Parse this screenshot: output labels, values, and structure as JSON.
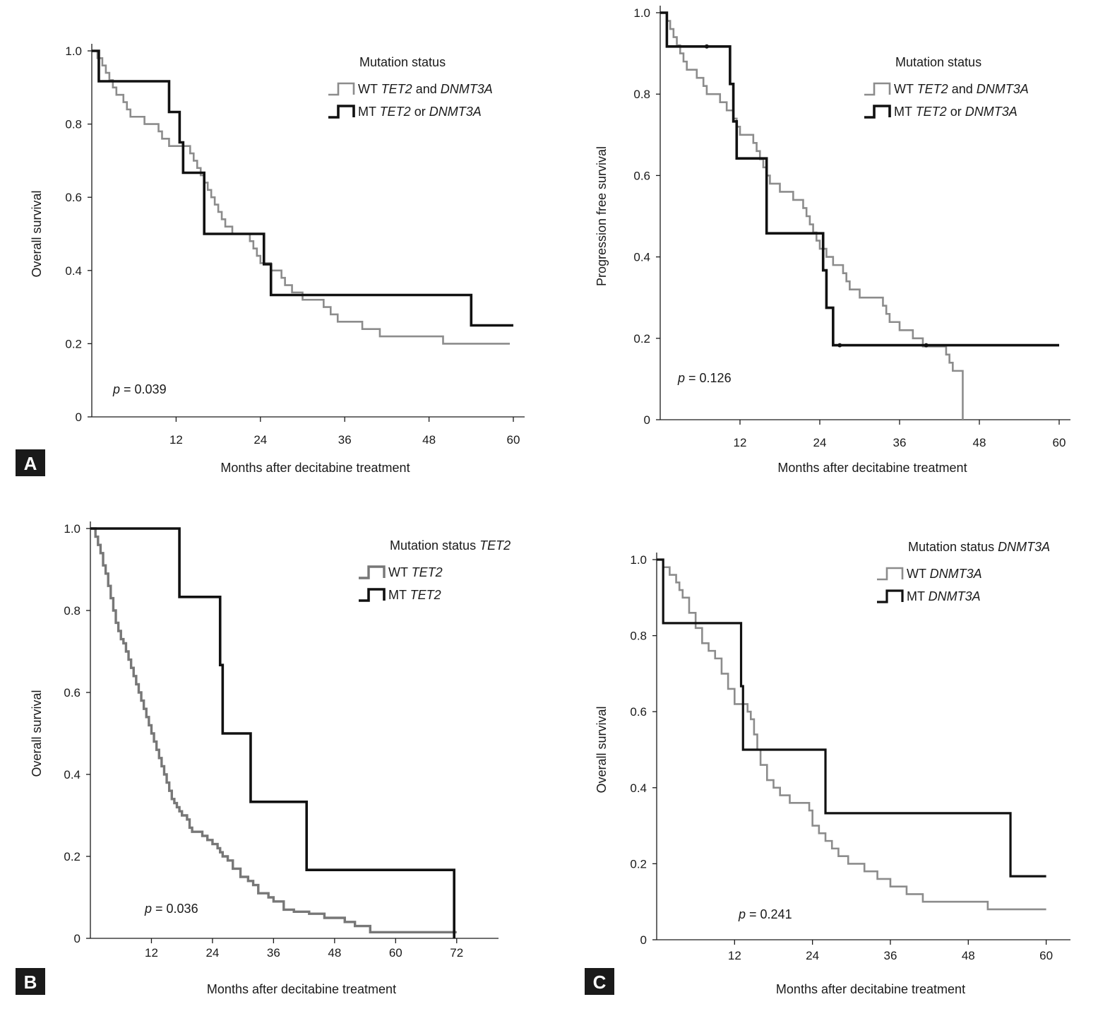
{
  "figure": {
    "panel_labels": [
      "A",
      "B",
      "C"
    ]
  },
  "chart_data": [
    {
      "type": "line",
      "subtype": "kaplan-meier",
      "id": "A-left",
      "xlabel": "Months after decitabine treatment",
      "ylabel": "Overall survival",
      "xlim": [
        0,
        60
      ],
      "ylim": [
        0,
        1
      ],
      "xticks": [
        12,
        24,
        36,
        48,
        60
      ],
      "yticks": [
        0,
        0.2,
        0.4,
        0.6,
        0.8,
        1.0
      ],
      "ytick_labels": [
        "0",
        "0.2",
        "0.4",
        "0.6",
        "0.8",
        "1.0"
      ],
      "legend_title": "Mutation status",
      "legend_title_italic": "",
      "p_label": "p",
      "p_value": " = 0.039",
      "series": [
        {
          "name_plain": "WT ",
          "name_italic": "TET2",
          "name_join": " and ",
          "name_italic2": "DNMT3A",
          "color": "#8c8c8c",
          "width": 2.6,
          "times": [
            0.8,
            1.5,
            2.0,
            2.5,
            3.0,
            3.5,
            4.5,
            5.0,
            5.5,
            7.5,
            9.5,
            10.0,
            11.0,
            14.0,
            14.5,
            15.0,
            15.5,
            16.0,
            16.5,
            17.0,
            17.5,
            18.0,
            18.5,
            19.0,
            20.0,
            22.5,
            23.0,
            23.5,
            24.0,
            25.5,
            27.0,
            27.5,
            28.5,
            30.0,
            33.0,
            34.0,
            35.0,
            38.5,
            41.0,
            50.0,
            59.5
          ],
          "survival": [
            0.98,
            0.96,
            0.94,
            0.92,
            0.9,
            0.88,
            0.86,
            0.84,
            0.82,
            0.8,
            0.78,
            0.76,
            0.74,
            0.72,
            0.7,
            0.68,
            0.66,
            0.64,
            0.62,
            0.6,
            0.58,
            0.56,
            0.54,
            0.52,
            0.5,
            0.48,
            0.46,
            0.44,
            0.42,
            0.4,
            0.38,
            0.36,
            0.34,
            0.32,
            0.3,
            0.28,
            0.26,
            0.24,
            0.22,
            0.2,
            0.2
          ],
          "censor_times": []
        },
        {
          "name_plain": "MT ",
          "name_italic": "TET2",
          "name_join": " or ",
          "name_italic2": "DNMT3A",
          "color": "#111111",
          "width": 3.6,
          "times": [
            1.0,
            11.0,
            12.5,
            13.0,
            16.0,
            24.5,
            25.5,
            54.0,
            60.0
          ],
          "survival": [
            0.917,
            0.833,
            0.75,
            0.667,
            0.5,
            0.417,
            0.333,
            0.25,
            0.25
          ],
          "censor_times": []
        }
      ]
    },
    {
      "type": "line",
      "subtype": "kaplan-meier",
      "id": "A-right",
      "xlabel": "Months after decitabine treatment",
      "ylabel": "Progression free survival",
      "xlim": [
        0,
        60
      ],
      "ylim": [
        0,
        1
      ],
      "xticks": [
        12,
        24,
        36,
        48,
        60
      ],
      "yticks": [
        0,
        0.2,
        0.4,
        0.6,
        0.8,
        1.0
      ],
      "ytick_labels": [
        "0",
        "0.2",
        "0.4",
        "0.6",
        "0.8",
        "1.0"
      ],
      "legend_title": "Mutation status",
      "legend_title_italic": "",
      "p_label": "p",
      "p_value": " = 0.126",
      "series": [
        {
          "name_plain": "WT ",
          "name_italic": "TET2",
          "name_join": " and ",
          "name_italic2": "DNMT3A",
          "color": "#8c8c8c",
          "width": 2.6,
          "times": [
            1.0,
            1.5,
            2.0,
            2.5,
            3.0,
            3.5,
            4.0,
            5.5,
            6.5,
            7.0,
            9.0,
            10.0,
            11.0,
            11.5,
            12.0,
            14.0,
            14.5,
            15.0,
            15.5,
            16.0,
            16.5,
            18.0,
            20.0,
            21.5,
            22.0,
            22.5,
            23.0,
            23.5,
            24.0,
            25.0,
            26.0,
            27.5,
            28.0,
            28.5,
            30.0,
            33.5,
            34.0,
            34.5,
            36.0,
            38.0,
            39.5,
            43.0,
            43.5,
            44.0,
            45.5,
            45.5
          ],
          "survival": [
            0.98,
            0.96,
            0.94,
            0.92,
            0.9,
            0.88,
            0.86,
            0.84,
            0.82,
            0.8,
            0.78,
            0.76,
            0.74,
            0.72,
            0.7,
            0.68,
            0.66,
            0.64,
            0.62,
            0.6,
            0.58,
            0.56,
            0.54,
            0.52,
            0.5,
            0.48,
            0.46,
            0.44,
            0.42,
            0.4,
            0.38,
            0.36,
            0.34,
            0.32,
            0.3,
            0.28,
            0.26,
            0.24,
            0.22,
            0.2,
            0.18,
            0.16,
            0.14,
            0.12,
            0.1,
            0.0
          ],
          "censor_times": []
        },
        {
          "name_plain": "MT ",
          "name_italic": "TET2",
          "name_join": " or ",
          "name_italic2": "DNMT3A",
          "color": "#111111",
          "width": 3.6,
          "times": [
            1.0,
            10.5,
            11.0,
            11.5,
            12.0,
            16.0,
            24.5,
            25.0,
            26.0,
            60.0
          ],
          "survival": [
            0.917,
            0.825,
            0.733,
            0.642,
            0.642,
            0.458,
            0.367,
            0.275,
            0.183,
            0.183
          ],
          "censor_times": [
            7.0,
            27.0,
            40.0
          ]
        }
      ]
    },
    {
      "type": "line",
      "subtype": "kaplan-meier",
      "id": "B",
      "xlabel": "Months after decitabine treatment",
      "ylabel": "Overall survival",
      "xlim": [
        0,
        78
      ],
      "ylim": [
        0,
        1
      ],
      "xticks": [
        12,
        24,
        36,
        48,
        60,
        72
      ],
      "yticks": [
        0,
        0.2,
        0.4,
        0.6,
        0.8,
        1.0
      ],
      "ytick_labels": [
        "0",
        "0.2",
        "0.4",
        "0.6",
        "0.8",
        "1.0"
      ],
      "legend_title": "Mutation status ",
      "legend_title_italic": "TET2",
      "p_label": "p",
      "p_value": " = 0.036",
      "series": [
        {
          "name_plain": "WT ",
          "name_italic": "TET2",
          "name_join": "",
          "name_italic2": "",
          "color": "#777777",
          "width": 3.4,
          "times": [
            1.0,
            1.5,
            2.0,
            2.5,
            3.0,
            3.5,
            4.0,
            4.5,
            5.0,
            5.5,
            6.0,
            6.5,
            7.0,
            7.5,
            8.0,
            8.5,
            9.0,
            9.5,
            10.0,
            10.5,
            11.0,
            11.5,
            12.0,
            12.5,
            13.0,
            13.5,
            14.0,
            14.5,
            15.0,
            15.5,
            16.0,
            16.5,
            17.0,
            17.5,
            18.0,
            19.0,
            19.5,
            20.0,
            22.0,
            23.0,
            24.0,
            25.0,
            25.5,
            26.0,
            27.0,
            28.0,
            29.5,
            31.0,
            32.0,
            33.0,
            35.0,
            36.0,
            38.0,
            40.0,
            43.0,
            46.0,
            50.0,
            52.0,
            55.0,
            60.0,
            72.0
          ],
          "survival": [
            0.98,
            0.96,
            0.94,
            0.91,
            0.89,
            0.86,
            0.83,
            0.8,
            0.77,
            0.75,
            0.73,
            0.72,
            0.7,
            0.68,
            0.66,
            0.64,
            0.62,
            0.6,
            0.58,
            0.56,
            0.54,
            0.52,
            0.5,
            0.48,
            0.46,
            0.44,
            0.42,
            0.4,
            0.38,
            0.36,
            0.34,
            0.33,
            0.32,
            0.31,
            0.3,
            0.29,
            0.27,
            0.26,
            0.25,
            0.24,
            0.23,
            0.22,
            0.21,
            0.2,
            0.19,
            0.17,
            0.15,
            0.14,
            0.13,
            0.11,
            0.1,
            0.09,
            0.07,
            0.065,
            0.06,
            0.05,
            0.04,
            0.03,
            0.015,
            0.015,
            0.015
          ],
          "censor_times": []
        },
        {
          "name_plain": "MT ",
          "name_italic": "TET2",
          "name_join": "",
          "name_italic2": "",
          "color": "#111111",
          "width": 3.6,
          "times": [
            17.5,
            25.5,
            26.0,
            31.5,
            42.5,
            71.5,
            71.5
          ],
          "survival": [
            0.833,
            0.667,
            0.5,
            0.333,
            0.167,
            0.167,
            0.0
          ],
          "censor_times": []
        }
      ]
    },
    {
      "type": "line",
      "subtype": "kaplan-meier",
      "id": "C",
      "xlabel": "Months after decitabine treatment",
      "ylabel": "Overall survival",
      "xlim": [
        0,
        62
      ],
      "ylim": [
        0,
        1
      ],
      "xticks": [
        12,
        24,
        36,
        48,
        60
      ],
      "yticks": [
        0,
        0.2,
        0.4,
        0.6,
        0.8,
        1.0
      ],
      "ytick_labels": [
        "0",
        "0.2",
        "0.4",
        "0.6",
        "0.8",
        "1.0"
      ],
      "legend_title": "Mutation status ",
      "legend_title_italic": "DNMT3A",
      "p_label": "p",
      "p_value": " = 0.241",
      "series": [
        {
          "name_plain": "WT ",
          "name_italic": "DNMT3A",
          "name_join": "",
          "name_italic2": "",
          "color": "#8c8c8c",
          "width": 2.6,
          "times": [
            1.0,
            2.0,
            3.0,
            3.5,
            4.0,
            5.0,
            6.0,
            7.0,
            8.0,
            9.0,
            10.0,
            11.0,
            12.0,
            14.0,
            14.5,
            15.0,
            15.5,
            16.0,
            17.0,
            18.0,
            19.0,
            20.5,
            23.5,
            24.0,
            25.0,
            26.0,
            27.0,
            28.0,
            29.5,
            32.0,
            34.0,
            36.0,
            38.5,
            41.0,
            51.0,
            60.0
          ],
          "survival": [
            0.98,
            0.96,
            0.94,
            0.92,
            0.9,
            0.86,
            0.82,
            0.78,
            0.76,
            0.74,
            0.7,
            0.66,
            0.62,
            0.6,
            0.58,
            0.54,
            0.5,
            0.46,
            0.42,
            0.4,
            0.38,
            0.36,
            0.34,
            0.3,
            0.28,
            0.26,
            0.24,
            0.22,
            0.2,
            0.18,
            0.16,
            0.14,
            0.12,
            0.1,
            0.08,
            0.08
          ],
          "censor_times": []
        },
        {
          "name_plain": "MT ",
          "name_italic": "DNMT3A",
          "name_join": "",
          "name_italic2": "",
          "color": "#111111",
          "width": 3.2,
          "times": [
            1.0,
            13.0,
            13.3,
            26.0,
            54.5,
            60.0
          ],
          "survival": [
            0.833,
            0.667,
            0.5,
            0.333,
            0.167,
            0.167
          ],
          "censor_times": []
        }
      ]
    }
  ]
}
